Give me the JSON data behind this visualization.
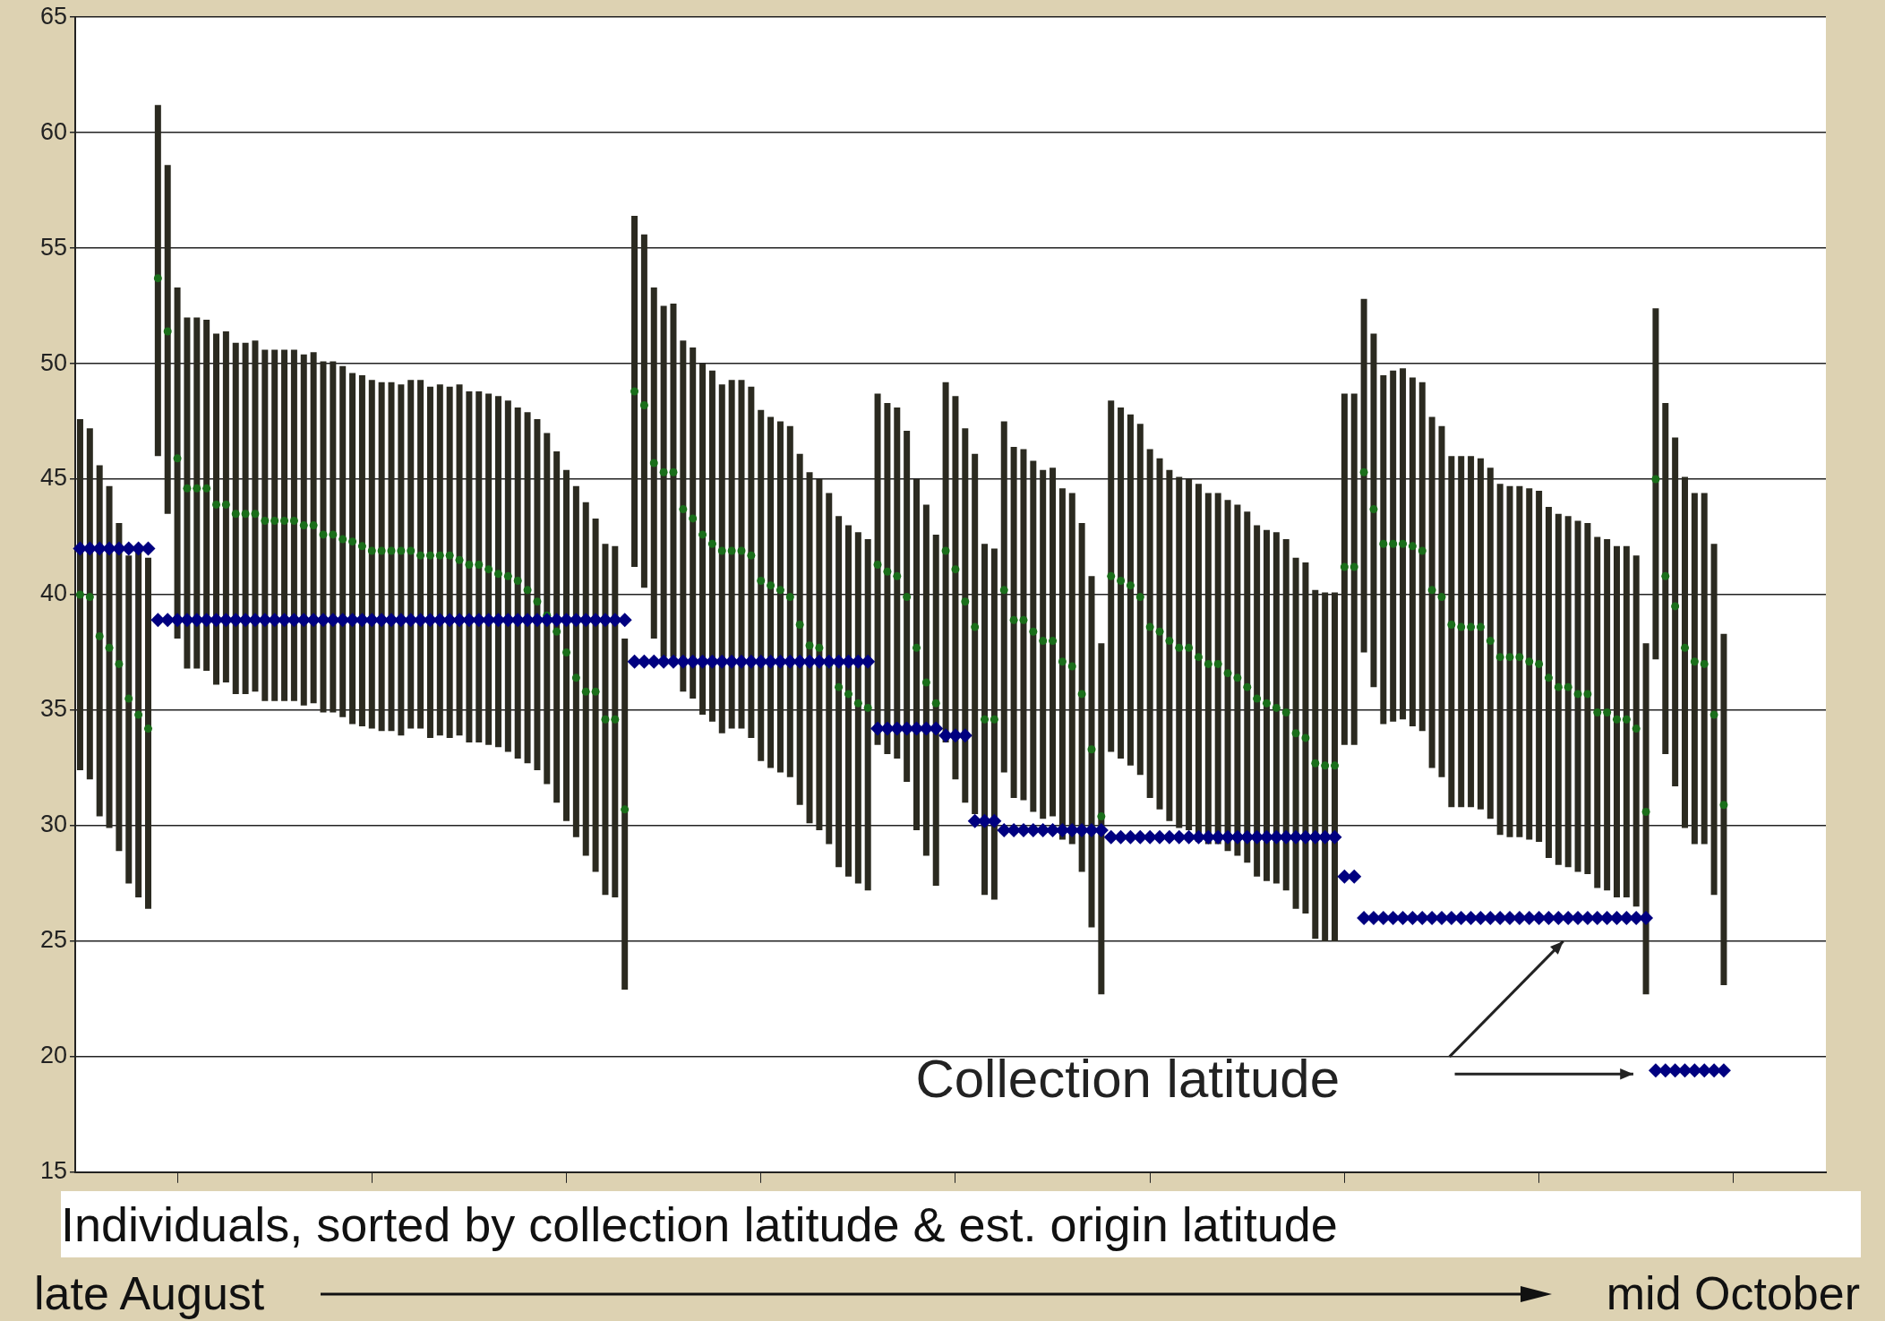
{
  "chart_data": {
    "type": "scatter",
    "xlabel": "Individuals, sorted by collection latitude & est. origin latitude",
    "annotations": [
      "late August",
      "mid October"
    ],
    "categories": [
      null,
      null,
      null,
      null,
      null,
      null,
      null,
      null,
      null,
      null,
      null,
      null,
      null,
      null,
      null,
      null,
      null,
      null,
      null,
      null,
      null,
      null,
      null,
      null,
      null,
      null,
      null,
      null,
      null,
      null,
      null,
      null,
      null,
      null,
      null,
      null,
      null,
      null,
      null,
      null,
      null,
      null,
      null,
      null,
      null,
      null,
      null,
      null,
      null,
      null,
      null,
      null,
      null,
      null,
      null,
      null,
      null,
      null,
      null,
      null,
      null,
      null,
      null,
      null,
      null,
      null,
      null,
      null,
      null,
      null,
      null,
      null,
      null,
      null,
      null,
      null,
      null,
      null,
      null,
      null,
      null,
      null,
      null,
      null,
      null,
      null,
      null,
      null,
      null,
      null,
      null,
      null,
      null,
      null,
      null,
      null,
      null,
      null,
      null,
      null,
      null,
      null,
      null,
      null,
      null,
      null,
      null,
      null,
      null,
      null,
      null,
      null,
      null,
      null,
      null,
      null,
      null,
      null,
      null,
      null,
      null,
      null,
      null,
      null,
      null,
      null,
      null,
      null,
      null,
      null,
      null,
      null,
      null,
      null,
      null,
      null,
      null,
      null,
      null,
      null,
      null,
      null,
      null,
      null,
      null,
      null,
      null,
      null,
      null,
      null,
      null,
      null,
      null,
      null,
      null,
      null,
      null,
      null,
      null,
      null,
      null,
      null,
      null,
      null,
      null,
      null,
      null,
      null,
      null,
      null,
      null,
      null,
      null,
      null,
      null,
      null,
      null,
      null,
      null,
      null
    ],
    "series": [
      {
        "name": "Collection latitude",
        "marker": "diamond",
        "color": "#000080",
        "values": [
          42.0,
          42.0,
          42.0,
          42.0,
          42.0,
          42.0,
          42.0,
          42.0,
          38.9,
          38.9,
          38.9,
          38.9,
          38.9,
          38.9,
          38.9,
          38.9,
          38.9,
          38.9,
          38.9,
          38.9,
          38.9,
          38.9,
          38.9,
          38.9,
          38.9,
          38.9,
          38.9,
          38.9,
          38.9,
          38.9,
          38.9,
          38.9,
          38.9,
          38.9,
          38.9,
          38.9,
          38.9,
          38.9,
          38.9,
          38.9,
          38.9,
          38.9,
          38.9,
          38.9,
          38.9,
          38.9,
          38.9,
          38.9,
          38.9,
          38.9,
          38.9,
          38.9,
          38.9,
          38.9,
          38.9,
          38.9,
          38.9,
          37.1,
          37.1,
          37.1,
          37.1,
          37.1,
          37.1,
          37.1,
          37.1,
          37.1,
          37.1,
          37.1,
          37.1,
          37.1,
          37.1,
          37.1,
          37.1,
          37.1,
          37.1,
          37.1,
          37.1,
          37.1,
          37.1,
          37.1,
          37.1,
          37.1,
          34.2,
          34.2,
          34.2,
          34.2,
          34.2,
          34.2,
          34.2,
          33.9,
          33.9,
          33.9,
          30.2,
          30.2,
          30.2,
          29.8,
          29.8,
          29.8,
          29.8,
          29.8,
          29.8,
          29.8,
          29.8,
          29.8,
          29.8,
          29.8,
          29.5,
          29.5,
          29.5,
          29.5,
          29.5,
          29.5,
          29.5,
          29.5,
          29.5,
          29.5,
          29.5,
          29.5,
          29.5,
          29.5,
          29.5,
          29.5,
          29.5,
          29.5,
          29.5,
          29.5,
          29.5,
          29.5,
          29.5,
          29.5,
          27.8,
          27.8,
          26.0,
          26.0,
          26.0,
          26.0,
          26.0,
          26.0,
          26.0,
          26.0,
          26.0,
          26.0,
          26.0,
          26.0,
          26.0,
          26.0,
          26.0,
          26.0,
          26.0,
          26.0,
          26.0,
          26.0,
          26.0,
          26.0,
          26.0,
          26.0,
          26.0,
          26.0,
          26.0,
          26.0,
          26.0,
          26.0,
          19.4,
          19.4,
          19.4,
          19.4,
          19.4,
          19.4,
          19.4,
          19.4,
          null,
          null,
          null,
          null,
          null,
          null,
          null,
          null,
          null,
          null
        ]
      },
      {
        "marker": "circle",
        "color": "#1a6e1a",
        "values": [
          40.0,
          39.9,
          38.2,
          37.7,
          37.0,
          35.5,
          34.8,
          34.2,
          53.7,
          51.4,
          45.9,
          44.6,
          44.6,
          44.6,
          43.9,
          43.9,
          43.5,
          43.5,
          43.5,
          43.2,
          43.2,
          43.2,
          43.2,
          43.0,
          43.0,
          42.6,
          42.6,
          42.4,
          42.3,
          42.1,
          41.9,
          41.9,
          41.9,
          41.9,
          41.9,
          41.7,
          41.7,
          41.7,
          41.7,
          41.5,
          41.3,
          41.3,
          41.1,
          40.9,
          40.8,
          40.6,
          40.2,
          39.7,
          39.1,
          38.4,
          37.5,
          36.4,
          35.8,
          35.8,
          34.6,
          34.6,
          30.7,
          48.8,
          48.2,
          45.7,
          45.3,
          45.3,
          43.7,
          43.3,
          42.6,
          42.2,
          41.9,
          41.9,
          41.9,
          41.7,
          40.6,
          40.4,
          40.2,
          39.9,
          38.7,
          37.8,
          37.7,
          37.0,
          36.0,
          35.7,
          35.3,
          35.1,
          41.3,
          41.0,
          40.8,
          39.9,
          37.7,
          36.2,
          35.3,
          41.9,
          41.1,
          39.7,
          38.6,
          34.6,
          34.6,
          40.2,
          38.9,
          38.9,
          38.4,
          38.0,
          38.0,
          37.1,
          36.9,
          35.7,
          33.3,
          30.4,
          40.8,
          40.6,
          40.4,
          39.9,
          38.6,
          38.4,
          38.0,
          37.7,
          37.7,
          37.3,
          37.0,
          37.0,
          36.6,
          36.4,
          36.0,
          35.5,
          35.3,
          35.1,
          34.9,
          34.0,
          33.8,
          32.7,
          32.6,
          32.6,
          41.2,
          41.2,
          45.3,
          43.7,
          42.2,
          42.2,
          42.2,
          42.1,
          41.9,
          40.2,
          39.9,
          38.7,
          38.6,
          38.6,
          38.6,
          38.0,
          37.3,
          37.3,
          37.3,
          37.1,
          37.0,
          36.4,
          36.0,
          36.0,
          35.7,
          35.7,
          34.9,
          34.9,
          34.6,
          34.6,
          34.2,
          30.6,
          45.0,
          40.8,
          39.5,
          37.7,
          37.1,
          37.0,
          34.8,
          30.9,
          null,
          null,
          null,
          null,
          null,
          null,
          null,
          null,
          null,
          null
        ],
        "errors": [
          [
            32.4,
            47.6
          ],
          [
            32.0,
            47.2
          ],
          [
            30.4,
            45.6
          ],
          [
            29.9,
            44.7
          ],
          [
            28.9,
            43.1
          ],
          [
            27.5,
            41.7
          ],
          [
            26.9,
            42.1
          ],
          [
            26.4,
            41.6
          ],
          [
            46.0,
            61.2
          ],
          [
            43.5,
            58.6
          ],
          [
            38.1,
            53.3
          ],
          [
            36.8,
            52.0
          ],
          [
            36.8,
            52.0
          ],
          [
            36.7,
            51.9
          ],
          [
            36.1,
            51.3
          ],
          [
            36.2,
            51.4
          ],
          [
            35.7,
            50.9
          ],
          [
            35.7,
            50.9
          ],
          [
            35.8,
            51.0
          ],
          [
            35.4,
            50.6
          ],
          [
            35.4,
            50.6
          ],
          [
            35.4,
            50.6
          ],
          [
            35.4,
            50.6
          ],
          [
            35.2,
            50.4
          ],
          [
            35.3,
            50.5
          ],
          [
            34.9,
            50.1
          ],
          [
            34.9,
            50.1
          ],
          [
            34.7,
            49.9
          ],
          [
            34.4,
            49.6
          ],
          [
            34.3,
            49.5
          ],
          [
            34.2,
            49.3
          ],
          [
            34.1,
            49.2
          ],
          [
            34.1,
            49.2
          ],
          [
            33.9,
            49.1
          ],
          [
            34.2,
            49.3
          ],
          [
            34.2,
            49.3
          ],
          [
            33.8,
            49.0
          ],
          [
            33.9,
            49.1
          ],
          [
            33.8,
            49.0
          ],
          [
            33.9,
            49.1
          ],
          [
            33.6,
            48.8
          ],
          [
            33.6,
            48.8
          ],
          [
            33.5,
            48.7
          ],
          [
            33.4,
            48.6
          ],
          [
            33.2,
            48.4
          ],
          [
            32.9,
            48.1
          ],
          [
            32.7,
            47.9
          ],
          [
            32.4,
            47.6
          ],
          [
            31.8,
            47.0
          ],
          [
            31.0,
            46.2
          ],
          [
            30.2,
            45.4
          ],
          [
            29.5,
            44.7
          ],
          [
            28.7,
            44.0
          ],
          [
            28.0,
            43.3
          ],
          [
            27.0,
            42.2
          ],
          [
            26.9,
            42.1
          ],
          [
            22.9,
            38.1
          ],
          [
            41.2,
            56.4
          ],
          [
            40.3,
            55.6
          ],
          [
            38.1,
            53.3
          ],
          [
            37.3,
            52.5
          ],
          [
            37.3,
            52.6
          ],
          [
            35.8,
            51.0
          ],
          [
            35.5,
            50.7
          ],
          [
            34.8,
            50.0
          ],
          [
            34.5,
            49.7
          ],
          [
            34.0,
            49.1
          ],
          [
            34.2,
            49.3
          ],
          [
            34.2,
            49.3
          ],
          [
            33.8,
            49.0
          ],
          [
            32.8,
            48.0
          ],
          [
            32.5,
            47.7
          ],
          [
            32.3,
            47.5
          ],
          [
            32.1,
            47.3
          ],
          [
            30.9,
            46.1
          ],
          [
            30.1,
            45.3
          ],
          [
            29.8,
            45.0
          ],
          [
            29.2,
            44.4
          ],
          [
            28.2,
            43.4
          ],
          [
            27.8,
            43.0
          ],
          [
            27.5,
            42.7
          ],
          [
            27.2,
            42.4
          ],
          [
            33.5,
            48.7
          ],
          [
            33.1,
            48.3
          ],
          [
            32.9,
            48.1
          ],
          [
            31.9,
            47.1
          ],
          [
            29.8,
            45.0
          ],
          [
            28.7,
            43.9
          ],
          [
            27.4,
            42.6
          ],
          [
            33.6,
            49.2
          ],
          [
            32.0,
            48.6
          ],
          [
            31.0,
            47.2
          ],
          [
            30.5,
            46.1
          ],
          [
            27.0,
            42.2
          ],
          [
            26.8,
            42.0
          ],
          [
            32.3,
            47.5
          ],
          [
            31.2,
            46.4
          ],
          [
            31.1,
            46.3
          ],
          [
            30.6,
            45.8
          ],
          [
            30.3,
            45.4
          ],
          [
            30.4,
            45.5
          ],
          [
            29.4,
            44.6
          ],
          [
            29.2,
            44.4
          ],
          [
            28.0,
            43.1
          ],
          [
            25.6,
            40.8
          ],
          [
            22.7,
            37.9
          ],
          [
            33.2,
            48.4
          ],
          [
            32.9,
            48.1
          ],
          [
            32.6,
            47.8
          ],
          [
            32.2,
            47.4
          ],
          [
            31.2,
            46.3
          ],
          [
            30.7,
            45.9
          ],
          [
            30.2,
            45.4
          ],
          [
            29.9,
            45.1
          ],
          [
            29.8,
            45.0
          ],
          [
            29.3,
            44.8
          ],
          [
            29.2,
            44.4
          ],
          [
            29.2,
            44.4
          ],
          [
            28.9,
            44.1
          ],
          [
            28.7,
            43.9
          ],
          [
            28.4,
            43.6
          ],
          [
            27.8,
            43.0
          ],
          [
            27.6,
            42.8
          ],
          [
            27.5,
            42.7
          ],
          [
            27.2,
            42.4
          ],
          [
            26.4,
            41.6
          ],
          [
            26.2,
            41.4
          ],
          [
            25.1,
            40.2
          ],
          [
            25.0,
            40.1
          ],
          [
            25.0,
            40.1
          ],
          [
            33.5,
            48.7
          ],
          [
            33.5,
            48.7
          ],
          [
            37.5,
            52.8
          ],
          [
            36.0,
            51.3
          ],
          [
            34.4,
            49.5
          ],
          [
            34.5,
            49.7
          ],
          [
            34.6,
            49.8
          ],
          [
            34.3,
            49.4
          ],
          [
            34.1,
            49.2
          ],
          [
            32.5,
            47.7
          ],
          [
            32.1,
            47.3
          ],
          [
            30.8,
            46.0
          ],
          [
            30.8,
            46.0
          ],
          [
            30.8,
            46.0
          ],
          [
            30.7,
            45.9
          ],
          [
            30.3,
            45.5
          ],
          [
            29.6,
            44.8
          ],
          [
            29.5,
            44.7
          ],
          [
            29.5,
            44.7
          ],
          [
            29.4,
            44.6
          ],
          [
            29.3,
            44.5
          ],
          [
            28.6,
            43.8
          ],
          [
            28.3,
            43.5
          ],
          [
            28.2,
            43.4
          ],
          [
            28.0,
            43.2
          ],
          [
            27.9,
            43.1
          ],
          [
            27.3,
            42.5
          ],
          [
            27.2,
            42.4
          ],
          [
            26.9,
            42.1
          ],
          [
            26.9,
            42.1
          ],
          [
            26.5,
            41.7
          ],
          [
            22.7,
            37.9
          ],
          [
            37.2,
            52.4
          ],
          [
            33.1,
            48.3
          ],
          [
            31.7,
            46.8
          ],
          [
            29.9,
            45.1
          ],
          [
            29.2,
            44.4
          ],
          [
            29.2,
            44.4
          ],
          [
            27.0,
            42.2
          ],
          [
            23.1,
            38.3
          ],
          null,
          null,
          null,
          null,
          null,
          null,
          null,
          null,
          null,
          null
        ]
      }
    ],
    "ylim": [
      15,
      65
    ],
    "yticks": [
      15,
      20,
      25,
      30,
      35,
      40,
      45,
      50,
      55,
      60,
      65
    ],
    "grid": "y",
    "legend": false,
    "tick_labels": "y"
  }
}
